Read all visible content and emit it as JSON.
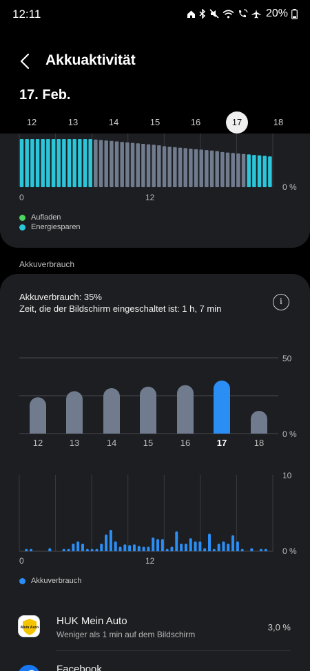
{
  "status_bar": {
    "time": "12:11",
    "battery": "20%",
    "icons": [
      "home-icon",
      "bluetooth-icon",
      "mute-icon",
      "wifi-icon",
      "wifi-calling-icon",
      "airplane-icon",
      "battery-icon"
    ]
  },
  "header": {
    "title": "Akkuaktivität",
    "back_icon": "chevron-left-icon"
  },
  "date_title": "17. Feb.",
  "day_tabs": [
    "12",
    "13",
    "14",
    "15",
    "16",
    "17",
    "18"
  ],
  "selected_day": "17",
  "level_chart": {
    "y_axis_label": "0 %",
    "x_labels": [
      "0",
      "12"
    ],
    "legend": [
      {
        "label": "Aufladen",
        "color": "#4fd461"
      },
      {
        "label": "Energiesparen",
        "color": "#2bc6d9"
      }
    ]
  },
  "section_label": "Akkuverbrauch",
  "usage_summary": {
    "line1": "Akkuverbrauch: 35%",
    "line2": "Zeit, die der Bildschirm eingeschaltet ist: 1 h, 7 min",
    "info_icon": "info-icon",
    "info_glyph": "i"
  },
  "chart_data": [
    {
      "type": "bar",
      "categories": [
        "12",
        "13",
        "14",
        "15",
        "16",
        "17",
        "18"
      ],
      "values": [
        24,
        28,
        30,
        31,
        32,
        35,
        15
      ],
      "highlight": "17",
      "ylim": [
        0,
        50
      ],
      "ytick_labels": [
        "50",
        "0 %"
      ],
      "colors": {
        "default": "#707b8e",
        "highlight": "#2b8ef5"
      }
    },
    {
      "type": "bar",
      "x_labels": [
        "0",
        "12"
      ],
      "ylim": [
        0,
        10
      ],
      "ytick_labels": [
        "10",
        "0 %"
      ],
      "values": [
        0,
        0.3,
        0.3,
        0,
        0,
        0,
        0.4,
        0,
        0,
        0.3,
        0.3,
        1,
        1.3,
        1,
        0.3,
        0.3,
        0.3,
        1,
        2.2,
        2.8,
        1.3,
        0.6,
        0.9,
        0.8,
        0.9,
        0.7,
        0.6,
        0.6,
        1.8,
        1.6,
        1.6,
        0.3,
        0.6,
        2.6,
        1,
        1,
        1.7,
        1.3,
        1.3,
        0.4,
        2.3,
        0.3,
        1,
        1.3,
        1,
        2.1,
        1.3,
        0.3,
        0,
        0.4,
        0,
        0.3,
        0.3,
        0
      ],
      "legend": [
        {
          "label": "Akkuverbrauch",
          "color": "#2b8ef5"
        }
      ]
    },
    {
      "type": "bar",
      "values": [
        100,
        100,
        100,
        100,
        100,
        100,
        100,
        100,
        100,
        100,
        100,
        100,
        100,
        100,
        99,
        98,
        97,
        96,
        95,
        94,
        93,
        92,
        91,
        90,
        89,
        88,
        87,
        85,
        84,
        83,
        82,
        81,
        80,
        79,
        78,
        77,
        76,
        75,
        73,
        72,
        71,
        70,
        69,
        68,
        67,
        66,
        65,
        64
      ],
      "charging_state": [
        "energy-saving",
        "energy-saving",
        "energy-saving",
        "energy-saving",
        "energy-saving",
        "energy-saving",
        "energy-saving",
        "energy-saving",
        "energy-saving",
        "energy-saving",
        "energy-saving",
        "energy-saving",
        "energy-saving",
        "energy-saving",
        "normal",
        "normal",
        "normal",
        "normal",
        "normal",
        "normal",
        "normal",
        "normal",
        "normal",
        "normal",
        "normal",
        "normal",
        "normal",
        "normal",
        "normal",
        "normal",
        "normal",
        "normal",
        "normal",
        "normal",
        "normal",
        "normal",
        "normal",
        "normal",
        "normal",
        "normal",
        "normal",
        "normal",
        "normal",
        "energy-saving",
        "energy-saving",
        "energy-saving",
        "energy-saving",
        "energy-saving"
      ],
      "colors": {
        "energy-saving": "#2bc6d9",
        "normal": "#707b8e"
      }
    }
  ],
  "apps": [
    {
      "name": "HUK Mein Auto",
      "subtitle": "Weniger als 1 min auf dem Bildschirm",
      "percent": "3,0 %",
      "icon": "huk-app-icon",
      "icon_text": "Mein Auto"
    },
    {
      "name": "Facebook",
      "subtitle": "",
      "percent": "",
      "icon": "facebook-app-icon"
    }
  ]
}
